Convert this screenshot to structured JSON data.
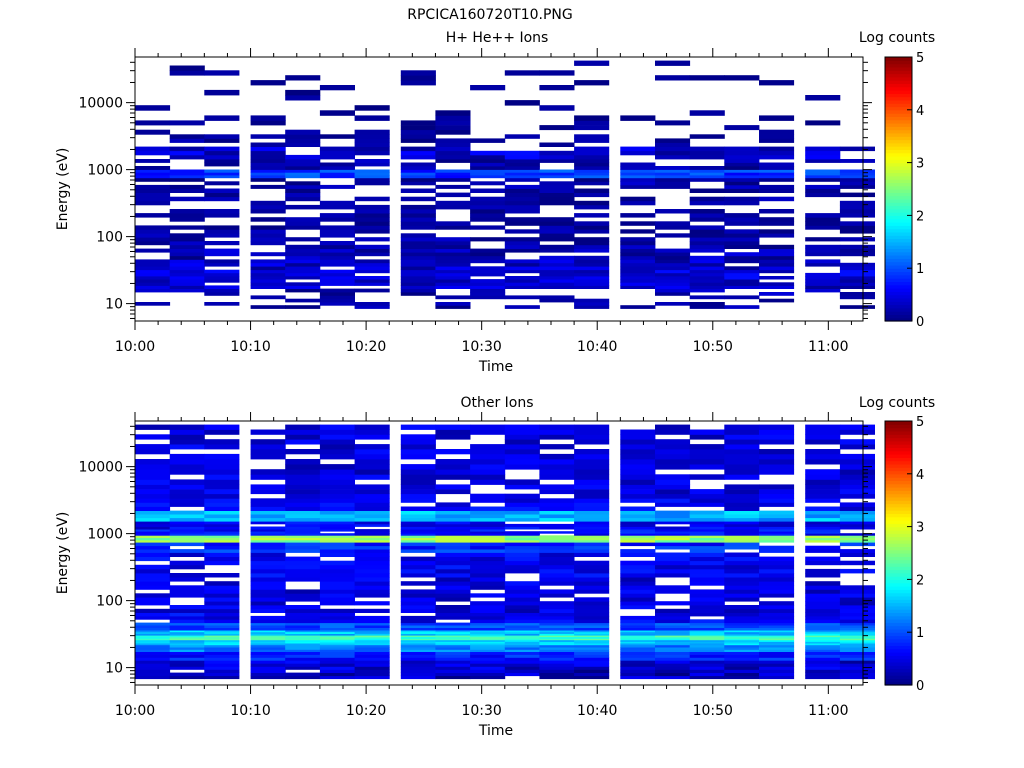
{
  "figure_title": "RPCICA160720T10.PNG",
  "colorbar_label": "Log counts",
  "color_scale": [
    "#00007f",
    "#0000ff",
    "#007fff",
    "#00ffff",
    "#7fff7f",
    "#ffff00",
    "#ff7f00",
    "#ff0000",
    "#7f0000"
  ],
  "chart_data": [
    {
      "type": "heatmap",
      "title": "H+ He++ Ions",
      "xlabel": "Time",
      "ylabel": "Energy (eV)",
      "x_ticks": [
        "10:00",
        "10:10",
        "10:20",
        "10:30",
        "10:40",
        "10:50",
        "11:00"
      ],
      "xlim": [
        "10:00",
        "11:03"
      ],
      "y_scale": "log",
      "y_ticks": [
        10,
        100,
        1000,
        10000
      ],
      "y_tick_labels": [
        "10",
        "100",
        "1000",
        "10000"
      ],
      "ylim": [
        5.5,
        48000
      ],
      "time_bins_start": [
        "10:00",
        "10:03",
        "10:06",
        "10:10",
        "10:13",
        "10:16",
        "10:19",
        "10:23",
        "10:26",
        "10:29",
        "10:32",
        "10:35",
        "10:38",
        "10:42",
        "10:45",
        "10:48",
        "10:51",
        "10:54",
        "10:58",
        "11:01"
      ],
      "colorbar": {
        "label": "Log counts",
        "min": 0,
        "max": 5,
        "ticks": [
          0,
          1,
          2,
          3,
          4,
          5
        ]
      },
      "grid": false,
      "bands": [
        {
          "energy_ev": 10,
          "level_range": [
            0.0,
            0.35
          ],
          "fill": 0.45
        },
        {
          "energy_ev": 14,
          "level_range": [
            0.0,
            0.45
          ],
          "fill": 0.55
        },
        {
          "energy_ev": 20,
          "level_range": [
            0.1,
            0.6
          ],
          "fill": 0.9
        },
        {
          "energy_ev": 27,
          "level_range": [
            0.2,
            0.7
          ],
          "fill": 0.9
        },
        {
          "energy_ev": 38,
          "level_range": [
            0.1,
            0.6
          ],
          "fill": 0.9
        },
        {
          "energy_ev": 55,
          "level_range": [
            0.0,
            0.5
          ],
          "fill": 0.8
        },
        {
          "energy_ev": 80,
          "level_range": [
            0.0,
            0.4
          ],
          "fill": 0.7
        },
        {
          "energy_ev": 120,
          "level_range": [
            0.0,
            0.35
          ],
          "fill": 0.65
        },
        {
          "energy_ev": 180,
          "level_range": [
            0.0,
            0.3
          ],
          "fill": 0.6
        },
        {
          "energy_ev": 280,
          "level_range": [
            0.0,
            0.3
          ],
          "fill": 0.6
        },
        {
          "energy_ev": 420,
          "level_range": [
            0.0,
            0.35
          ],
          "fill": 0.6
        },
        {
          "energy_ev": 650,
          "level_range": [
            0.0,
            0.4
          ],
          "fill": 0.65
        },
        {
          "energy_ev": 880,
          "level_range": [
            0.6,
            1.2
          ],
          "fill": 1.0
        },
        {
          "energy_ev": 1150,
          "level_range": [
            0.0,
            0.4
          ],
          "fill": 0.6
        },
        {
          "energy_ev": 1800,
          "level_range": [
            0.1,
            0.7
          ],
          "fill": 0.75
        },
        {
          "energy_ev": 2700,
          "level_range": [
            0.0,
            0.3
          ],
          "fill": 0.4
        },
        {
          "energy_ev": 4200,
          "level_range": [
            0.0,
            0.25
          ],
          "fill": 0.3
        },
        {
          "energy_ev": 7000,
          "level_range": [
            0.0,
            0.2
          ],
          "fill": 0.25
        },
        {
          "energy_ev": 12000,
          "level_range": [
            0.0,
            0.2
          ],
          "fill": 0.2
        },
        {
          "energy_ev": 20000,
          "level_range": [
            0.0,
            0.2
          ],
          "fill": 0.2
        },
        {
          "energy_ev": 33000,
          "level_range": [
            0.0,
            0.2
          ],
          "fill": 0.15
        }
      ]
    },
    {
      "type": "heatmap",
      "title": "Other Ions",
      "xlabel": "Time",
      "ylabel": "Energy (eV)",
      "x_ticks": [
        "10:00",
        "10:10",
        "10:20",
        "10:30",
        "10:40",
        "10:50",
        "11:00"
      ],
      "xlim": [
        "10:00",
        "11:03"
      ],
      "y_scale": "log",
      "y_ticks": [
        10,
        100,
        1000,
        10000
      ],
      "y_tick_labels": [
        "10",
        "100",
        "1000",
        "10000"
      ],
      "ylim": [
        5.5,
        48000
      ],
      "time_bins_start": [
        "10:00",
        "10:03",
        "10:06",
        "10:10",
        "10:13",
        "10:16",
        "10:19",
        "10:23",
        "10:26",
        "10:29",
        "10:32",
        "10:35",
        "10:38",
        "10:42",
        "10:45",
        "10:48",
        "10:51",
        "10:54",
        "10:58",
        "11:01"
      ],
      "colorbar": {
        "label": "Log counts",
        "min": 0,
        "max": 5,
        "ticks": [
          0,
          1,
          2,
          3,
          4,
          5
        ]
      },
      "grid": false,
      "bands": [
        {
          "energy_ev": 8,
          "level_range": [
            0.0,
            0.6
          ],
          "fill": 0.96
        },
        {
          "energy_ev": 11,
          "level_range": [
            0.1,
            0.7
          ],
          "fill": 1.0
        },
        {
          "energy_ev": 15,
          "level_range": [
            0.5,
            1.0
          ],
          "fill": 1.0
        },
        {
          "energy_ev": 20,
          "level_range": [
            1.0,
            1.5
          ],
          "fill": 1.0
        },
        {
          "energy_ev": 24,
          "level_range": [
            1.4,
            1.9
          ],
          "fill": 1.0
        },
        {
          "energy_ev": 28,
          "level_range": [
            1.9,
            2.4
          ],
          "fill": 1.0
        },
        {
          "energy_ev": 33,
          "level_range": [
            1.3,
            1.9
          ],
          "fill": 1.0
        },
        {
          "energy_ev": 40,
          "level_range": [
            0.7,
            1.2
          ],
          "fill": 1.0
        },
        {
          "energy_ev": 55,
          "level_range": [
            0.3,
            0.8
          ],
          "fill": 0.9
        },
        {
          "energy_ev": 80,
          "level_range": [
            0.2,
            0.7
          ],
          "fill": 0.85
        },
        {
          "energy_ev": 120,
          "level_range": [
            0.2,
            0.7
          ],
          "fill": 0.85
        },
        {
          "energy_ev": 180,
          "level_range": [
            0.2,
            0.7
          ],
          "fill": 0.85
        },
        {
          "energy_ev": 280,
          "level_range": [
            0.3,
            0.8
          ],
          "fill": 0.85
        },
        {
          "energy_ev": 420,
          "level_range": [
            0.3,
            0.8
          ],
          "fill": 0.85
        },
        {
          "energy_ev": 650,
          "level_range": [
            0.5,
            1.1
          ],
          "fill": 0.9
        },
        {
          "energy_ev": 850,
          "level_range": [
            2.3,
            2.9
          ],
          "fill": 1.0
        },
        {
          "energy_ev": 1050,
          "level_range": [
            0.4,
            0.9
          ],
          "fill": 0.9
        },
        {
          "energy_ev": 1300,
          "level_range": [
            0.3,
            0.8
          ],
          "fill": 0.9
        },
        {
          "energy_ev": 1800,
          "level_range": [
            1.2,
            1.8
          ],
          "fill": 1.0
        },
        {
          "energy_ev": 2700,
          "level_range": [
            0.3,
            0.8
          ],
          "fill": 0.85
        },
        {
          "energy_ev": 4200,
          "level_range": [
            0.2,
            0.7
          ],
          "fill": 0.8
        },
        {
          "energy_ev": 7000,
          "level_range": [
            0.2,
            0.7
          ],
          "fill": 0.8
        },
        {
          "energy_ev": 12000,
          "level_range": [
            0.2,
            0.7
          ],
          "fill": 0.8
        },
        {
          "energy_ev": 20000,
          "level_range": [
            0.2,
            0.7
          ],
          "fill": 0.8
        },
        {
          "energy_ev": 33000,
          "level_range": [
            0.2,
            0.7
          ],
          "fill": 0.8
        }
      ]
    }
  ]
}
